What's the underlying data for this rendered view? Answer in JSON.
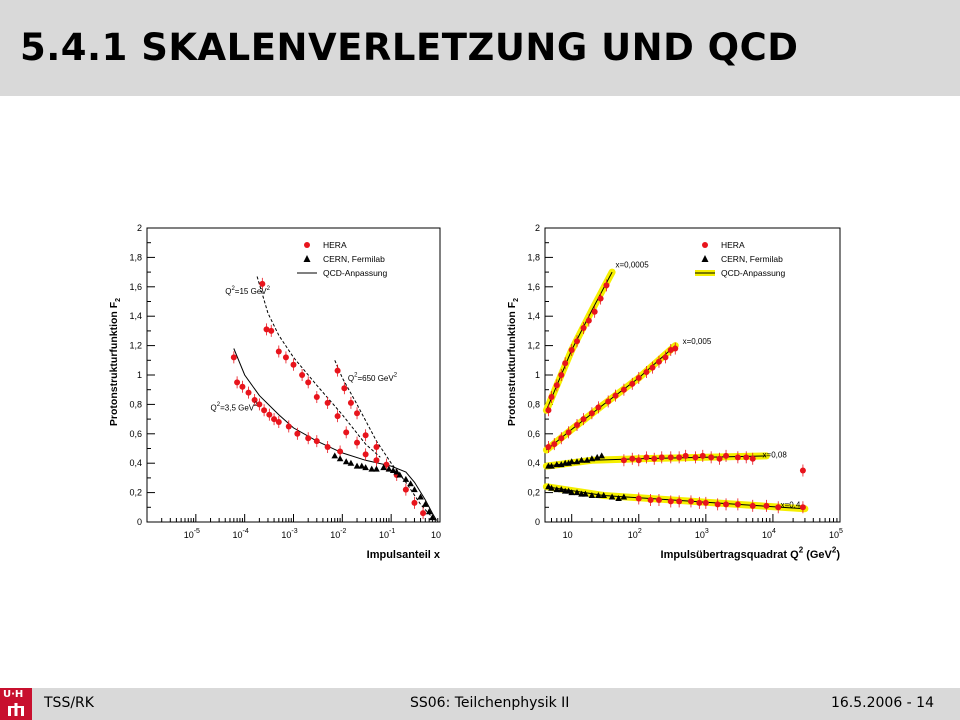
{
  "slide": {
    "title": "5.4.1 SKALENVERLETZUNG UND QCD",
    "footer_left": "TSS/RK",
    "footer_center": "SS06: Teilchenphysik II",
    "footer_right": "16.5.2006 - 14",
    "logo_text": "U·H"
  },
  "colors": {
    "title_bar": "#d9d9d9",
    "hera": "#e8141c",
    "cern": "#000000",
    "fit_band": "#f5ef00",
    "logo": "#c8102e"
  },
  "chart_data": [
    {
      "type": "scatter",
      "xscale": "log",
      "xlim": [
        1e-06,
        1
      ],
      "ylim": [
        0,
        2
      ],
      "xlabel": "Impulsanteil x",
      "ylabel": "Protonstrukturfunktion F",
      "ylabel_sub": "2",
      "x_ticks": [
        "10",
        "10",
        "10",
        "10",
        "10",
        "10"
      ],
      "x_tick_exps": [
        "-5",
        "-4",
        "-3",
        "-2",
        "-1",
        ""
      ],
      "x_tick_values": [
        1e-05,
        0.0001,
        0.001,
        0.01,
        0.1,
        1
      ],
      "y_ticks": [
        "0",
        "0,2",
        "0,4",
        "0,6",
        "0,8",
        "1",
        "1,2",
        "1,4",
        "1,6",
        "1,8",
        "2"
      ],
      "y_tick_values": [
        0,
        0.2,
        0.4,
        0.6,
        0.8,
        1,
        1.2,
        1.4,
        1.6,
        1.8,
        2
      ],
      "legend": [
        "HERA",
        "CERN, Fermilab",
        "QCD-Anpassung"
      ],
      "annotations": [
        {
          "text": "Q",
          "sup": "2",
          "rest": "=15 GeV",
          "rest_sup": "2",
          "x": 4e-05,
          "y": 1.55
        },
        {
          "text": "Q",
          "sup": "2",
          "rest": "=3,5 GeV",
          "rest_sup": "2",
          "x": 2e-05,
          "y": 0.76
        },
        {
          "text": "Q",
          "sup": "2",
          "rest": "=650 GeV",
          "rest_sup": "2",
          "x": 0.013,
          "y": 0.96
        }
      ],
      "series": [
        {
          "name": "HERA",
          "marker": "circle",
          "points": [
            [
              6e-05,
              1.12
            ],
            [
              7e-05,
              0.95
            ],
            [
              9e-05,
              0.92
            ],
            [
              0.00012,
              0.88
            ],
            [
              0.00016,
              0.83
            ],
            [
              0.0002,
              0.8
            ],
            [
              0.00025,
              0.76
            ],
            [
              0.00032,
              0.73
            ],
            [
              0.0004,
              0.7
            ],
            [
              0.0005,
              0.68
            ],
            [
              0.0008,
              0.65
            ],
            [
              0.0012,
              0.6
            ],
            [
              0.002,
              0.57
            ],
            [
              0.003,
              0.55
            ],
            [
              0.005,
              0.51
            ],
            [
              0.009,
              0.48
            ],
            [
              0.00023,
              1.62
            ],
            [
              0.00028,
              1.31
            ],
            [
              0.00035,
              1.3
            ],
            [
              0.0005,
              1.16
            ],
            [
              0.0007,
              1.12
            ],
            [
              0.001,
              1.07
            ],
            [
              0.0015,
              1.0
            ],
            [
              0.002,
              0.95
            ],
            [
              0.003,
              0.85
            ],
            [
              0.005,
              0.81
            ],
            [
              0.008,
              0.72
            ],
            [
              0.012,
              0.61
            ],
            [
              0.02,
              0.54
            ],
            [
              0.03,
              0.46
            ],
            [
              0.05,
              0.42
            ],
            [
              0.008,
              1.03
            ],
            [
              0.011,
              0.91
            ],
            [
              0.015,
              0.81
            ],
            [
              0.02,
              0.74
            ],
            [
              0.03,
              0.59
            ],
            [
              0.05,
              0.51
            ],
            [
              0.08,
              0.39
            ],
            [
              0.13,
              0.32
            ],
            [
              0.2,
              0.22
            ],
            [
              0.3,
              0.13
            ],
            [
              0.45,
              0.06
            ]
          ]
        },
        {
          "name": "CERN, Fermilab",
          "marker": "triangle",
          "points": [
            [
              0.007,
              0.45
            ],
            [
              0.009,
              0.43
            ],
            [
              0.012,
              0.41
            ],
            [
              0.015,
              0.4
            ],
            [
              0.02,
              0.38
            ],
            [
              0.025,
              0.38
            ],
            [
              0.03,
              0.37
            ],
            [
              0.04,
              0.36
            ],
            [
              0.05,
              0.36
            ],
            [
              0.07,
              0.37
            ],
            [
              0.09,
              0.36
            ],
            [
              0.11,
              0.35
            ],
            [
              0.13,
              0.34
            ],
            [
              0.15,
              0.32
            ],
            [
              0.2,
              0.29
            ],
            [
              0.25,
              0.26
            ],
            [
              0.3,
              0.22
            ],
            [
              0.4,
              0.17
            ],
            [
              0.5,
              0.12
            ],
            [
              0.6,
              0.07
            ],
            [
              0.7,
              0.03
            ]
          ]
        },
        {
          "name": "QCD-Anpassung",
          "marker": "line",
          "curves": [
            [
              [
                6e-05,
                1.18
              ],
              [
                0.0001,
                1.0
              ],
              [
                0.0002,
                0.86
              ],
              [
                0.0005,
                0.73
              ],
              [
                0.001,
                0.64
              ],
              [
                0.003,
                0.55
              ],
              [
                0.01,
                0.47
              ],
              [
                0.03,
                0.42
              ],
              [
                0.1,
                0.38
              ],
              [
                0.2,
                0.34
              ],
              [
                0.3,
                0.27
              ],
              [
                0.5,
                0.15
              ],
              [
                0.7,
                0.06
              ],
              [
                0.85,
                0.01
              ]
            ],
            [
              [
                0.00018,
                1.67
              ],
              [
                0.0003,
                1.42
              ],
              [
                0.0005,
                1.27
              ],
              [
                0.001,
                1.12
              ],
              [
                0.003,
                0.93
              ],
              [
                0.01,
                0.73
              ],
              [
                0.03,
                0.53
              ],
              [
                0.06,
                0.44
              ]
            ],
            [
              [
                0.007,
                1.1
              ],
              [
                0.01,
                0.98
              ],
              [
                0.02,
                0.8
              ],
              [
                0.05,
                0.55
              ],
              [
                0.1,
                0.4
              ],
              [
                0.2,
                0.27
              ],
              [
                0.4,
                0.12
              ],
              [
                0.7,
                0.03
              ]
            ]
          ]
        }
      ]
    },
    {
      "type": "scatter",
      "xscale": "log",
      "xlim": [
        4,
        100000
      ],
      "ylim": [
        0,
        2
      ],
      "xlabel": "Impulsübertragsquadrat Q",
      "xlabel_sup": "2",
      "xlabel_unit": " (GeV",
      "xlabel_unit_sup": "2",
      "xlabel_end": ")",
      "ylabel": "Protonstrukturfunktion F",
      "ylabel_sub": "2",
      "x_ticks": [
        "10",
        "10",
        "10",
        "10",
        "10"
      ],
      "x_tick_exps": [
        "",
        "2",
        "3",
        "4",
        "5"
      ],
      "x_tick_values": [
        10,
        100,
        1000,
        10000,
        100000
      ],
      "y_ticks": [
        "0",
        "0,2",
        "0,4",
        "0,6",
        "0,8",
        "1",
        "1,2",
        "1,4",
        "1,6",
        "1,8",
        "2"
      ],
      "y_tick_values": [
        0,
        0.2,
        0.4,
        0.6,
        0.8,
        1,
        1.2,
        1.4,
        1.6,
        1.8,
        2
      ],
      "legend": [
        "HERA",
        "CERN, Fermilab",
        "QCD-Anpassung"
      ],
      "annotations": [
        {
          "text": "x=0,0005",
          "x": 45,
          "y": 1.73
        },
        {
          "text": "x=0,005",
          "x": 450,
          "y": 1.21
        },
        {
          "text": "x=0,08",
          "x": 7000,
          "y": 0.44
        },
        {
          "text": "x=0,4",
          "x": 13000,
          "y": 0.1
        }
      ],
      "series": [
        {
          "name": "HERA",
          "marker": "circle",
          "points": [
            [
              4.5,
              0.76
            ],
            [
              5,
              0.85
            ],
            [
              6,
              0.93
            ],
            [
              7,
              1.0
            ],
            [
              8,
              1.08
            ],
            [
              10,
              1.17
            ],
            [
              12,
              1.23
            ],
            [
              15,
              1.32
            ],
            [
              18,
              1.37
            ],
            [
              22,
              1.43
            ],
            [
              27,
              1.52
            ],
            [
              33,
              1.61
            ],
            [
              4.5,
              0.51
            ],
            [
              5.5,
              0.53
            ],
            [
              7,
              0.57
            ],
            [
              9,
              0.61
            ],
            [
              12,
              0.66
            ],
            [
              15,
              0.7
            ],
            [
              20,
              0.74
            ],
            [
              25,
              0.78
            ],
            [
              35,
              0.82
            ],
            [
              45,
              0.86
            ],
            [
              60,
              0.9
            ],
            [
              80,
              0.94
            ],
            [
              100,
              0.98
            ],
            [
              130,
              1.02
            ],
            [
              160,
              1.05
            ],
            [
              200,
              1.09
            ],
            [
              250,
              1.12
            ],
            [
              300,
              1.17
            ],
            [
              350,
              1.18
            ],
            [
              60,
              0.42
            ],
            [
              80,
              0.43
            ],
            [
              100,
              0.42
            ],
            [
              130,
              0.44
            ],
            [
              170,
              0.43
            ],
            [
              220,
              0.44
            ],
            [
              300,
              0.44
            ],
            [
              400,
              0.44
            ],
            [
              500,
              0.45
            ],
            [
              700,
              0.44
            ],
            [
              900,
              0.45
            ],
            [
              1200,
              0.44
            ],
            [
              1600,
              0.43
            ],
            [
              2000,
              0.45
            ],
            [
              3000,
              0.44
            ],
            [
              4000,
              0.44
            ],
            [
              5000,
              0.43
            ],
            [
              28000,
              0.35
            ],
            [
              100,
              0.16
            ],
            [
              150,
              0.15
            ],
            [
              200,
              0.15
            ],
            [
              300,
              0.14
            ],
            [
              400,
              0.14
            ],
            [
              600,
              0.14
            ],
            [
              800,
              0.13
            ],
            [
              1000,
              0.13
            ],
            [
              1500,
              0.12
            ],
            [
              2000,
              0.12
            ],
            [
              3000,
              0.12
            ],
            [
              5000,
              0.11
            ],
            [
              8000,
              0.11
            ],
            [
              12000,
              0.1
            ],
            [
              28000,
              0.1
            ]
          ]
        },
        {
          "name": "CERN, Fermilab",
          "marker": "triangle",
          "points": [
            [
              4.5,
              0.38
            ],
            [
              5,
              0.38
            ],
            [
              6,
              0.39
            ],
            [
              7,
              0.39
            ],
            [
              8,
              0.4
            ],
            [
              9,
              0.4
            ],
            [
              10,
              0.41
            ],
            [
              12,
              0.41
            ],
            [
              14,
              0.42
            ],
            [
              17,
              0.42
            ],
            [
              20,
              0.43
            ],
            [
              24,
              0.44
            ],
            [
              28,
              0.45
            ],
            [
              4.5,
              0.24
            ],
            [
              5,
              0.23
            ],
            [
              6,
              0.22
            ],
            [
              7,
              0.22
            ],
            [
              8,
              0.21
            ],
            [
              9,
              0.21
            ],
            [
              10,
              0.2
            ],
            [
              12,
              0.2
            ],
            [
              14,
              0.19
            ],
            [
              16,
              0.19
            ],
            [
              20,
              0.18
            ],
            [
              25,
              0.18
            ],
            [
              30,
              0.18
            ],
            [
              40,
              0.17
            ],
            [
              50,
              0.16
            ],
            [
              60,
              0.17
            ]
          ]
        },
        {
          "name": "QCD-Anpassung",
          "marker": "band",
          "curves": [
            [
              [
                4.2,
                0.76
              ],
              [
                10,
                1.17
              ],
              [
                20,
                1.44
              ],
              [
                40,
                1.7
              ]
            ],
            [
              [
                4.2,
                0.49
              ],
              [
                10,
                0.63
              ],
              [
                30,
                0.8
              ],
              [
                100,
                0.98
              ],
              [
                350,
                1.2
              ]
            ],
            [
              [
                4.2,
                0.38
              ],
              [
                20,
                0.42
              ],
              [
                100,
                0.43
              ],
              [
                1000,
                0.44
              ],
              [
                8000,
                0.45
              ]
            ],
            [
              [
                4.2,
                0.24
              ],
              [
                30,
                0.18
              ],
              [
                300,
                0.15
              ],
              [
                3000,
                0.12
              ],
              [
                30000,
                0.09
              ]
            ]
          ]
        }
      ]
    }
  ]
}
